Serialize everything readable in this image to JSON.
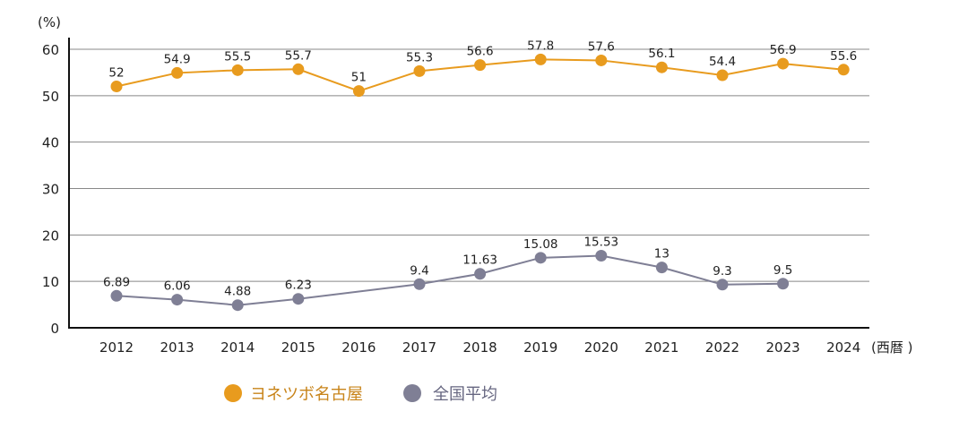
{
  "chart_data": {
    "type": "line",
    "ylabel": "(%)",
    "xlabel": "(西暦 )",
    "ylim": [
      0,
      60
    ],
    "yticks": [
      0,
      10,
      20,
      30,
      40,
      50,
      60
    ],
    "grid": true,
    "legend_placement": "bottom",
    "categories": [
      "2012",
      "2013",
      "2014",
      "2015",
      "2016",
      "2017",
      "2018",
      "2019",
      "2020",
      "2021",
      "2022",
      "2023",
      "2024"
    ],
    "series": [
      {
        "name": "ヨネツボ名古屋",
        "color": "#E89B1E",
        "values": [
          52,
          54.9,
          55.5,
          55.7,
          51,
          55.3,
          56.6,
          57.8,
          57.6,
          56.1,
          54.4,
          56.9,
          55.6
        ],
        "labels": [
          "52",
          "54.9",
          "55.5",
          "55.7",
          "51",
          "55.3",
          "56.6",
          "57.8",
          "57.6",
          "56.1",
          "54.4",
          "56.9",
          "55.6"
        ]
      },
      {
        "name": "全国平均",
        "color": "#7F7F95",
        "values": [
          6.89,
          6.06,
          4.88,
          6.23,
          null,
          9.4,
          11.63,
          15.08,
          15.53,
          13,
          9.3,
          9.5,
          null
        ],
        "labels": [
          "6.89",
          "6.06",
          "4.88",
          "6.23",
          "",
          "9.4",
          "11.63",
          "15.08",
          "15.53",
          "13",
          "9.3",
          "9.5",
          ""
        ]
      }
    ]
  }
}
